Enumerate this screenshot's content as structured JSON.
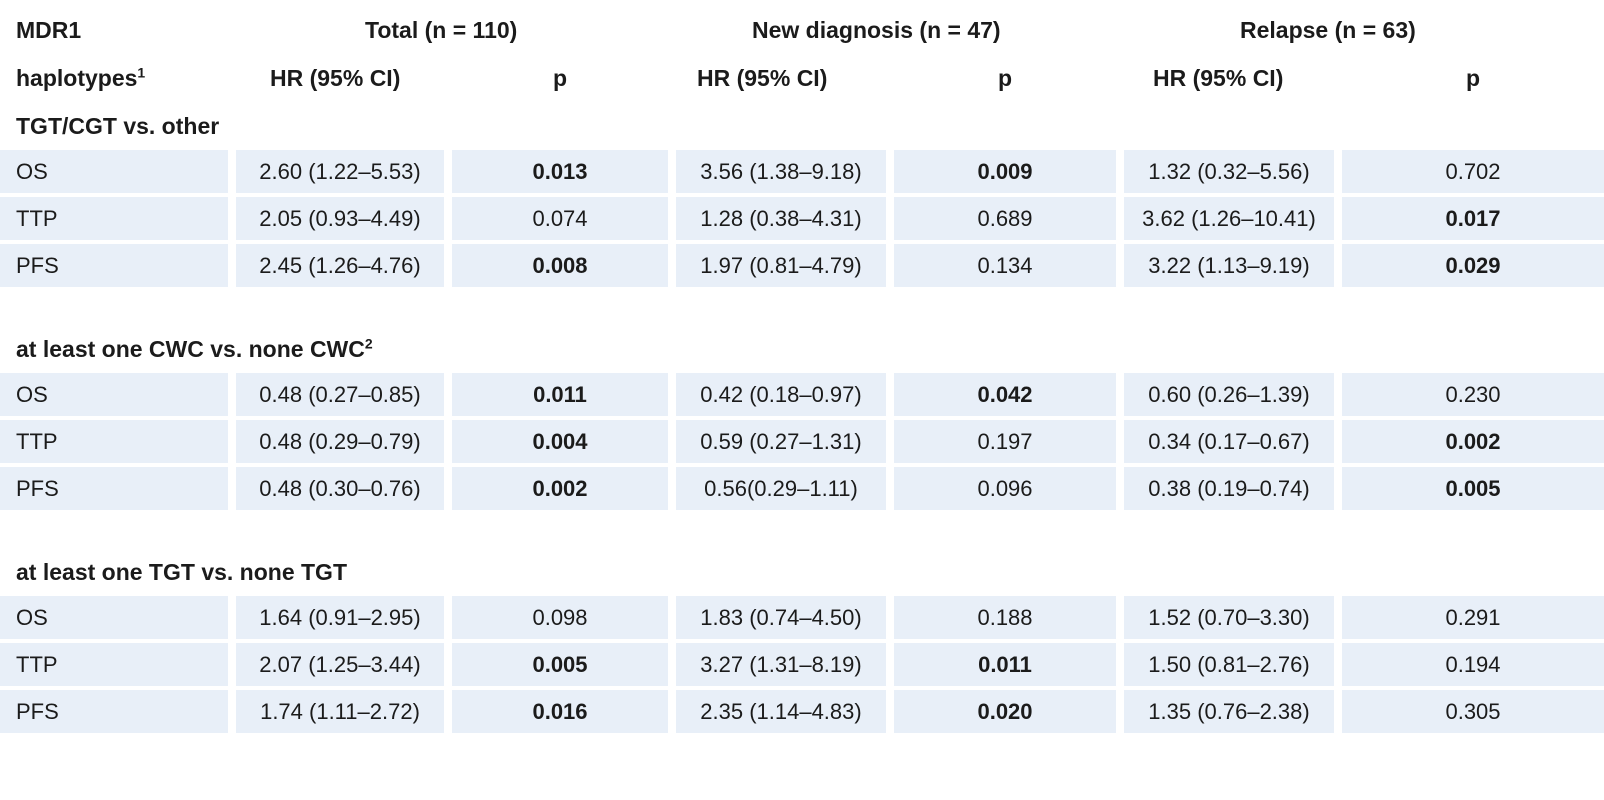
{
  "header": {
    "mdr1": "MDR1",
    "haplotypes": "haplotypes",
    "haplotypes_sup": "1",
    "total": "Total (n = 110)",
    "new_diagnosis": "New diagnosis (n = 47)",
    "relapse": "Relapse (n = 63)",
    "hr_label": "HR (95% CI)",
    "p_label": "p"
  },
  "groups": [
    {
      "title": "TGT/CGT vs. other",
      "title_sup": "",
      "rows": [
        {
          "label": "OS",
          "total_hr": "2.60 (1.22–5.53)",
          "total_p": "0.013",
          "new_hr": "3.56 (1.38–9.18)",
          "new_p": "0.009",
          "relapse_hr": "1.32 (0.32–5.56)",
          "relapse_p": "0.702"
        },
        {
          "label": "TTP",
          "total_hr": "2.05 (0.93–4.49)",
          "total_p": "0.074",
          "new_hr": "1.28 (0.38–4.31)",
          "new_p": "0.689",
          "relapse_hr": "3.62 (1.26–10.41)",
          "relapse_p": "0.017"
        },
        {
          "label": "PFS",
          "total_hr": "2.45 (1.26–4.76)",
          "total_p": "0.008",
          "new_hr": "1.97 (0.81–4.79)",
          "new_p": "0.134",
          "relapse_hr": "3.22 (1.13–9.19)",
          "relapse_p": "0.029"
        }
      ]
    },
    {
      "title": "at least one CWC vs. none CWC",
      "title_sup": "2",
      "rows": [
        {
          "label": "OS",
          "total_hr": "0.48 (0.27–0.85)",
          "total_p": "0.011",
          "new_hr": "0.42 (0.18–0.97)",
          "new_p": "0.042",
          "relapse_hr": "0.60 (0.26–1.39)",
          "relapse_p": "0.230"
        },
        {
          "label": "TTP",
          "total_hr": "0.48 (0.29–0.79)",
          "total_p": "0.004",
          "new_hr": "0.59 (0.27–1.31)",
          "new_p": "0.197",
          "relapse_hr": "0.34 (0.17–0.67)",
          "relapse_p": "0.002"
        },
        {
          "label": "PFS",
          "total_hr": "0.48 (0.30–0.76)",
          "total_p": "0.002",
          "new_hr": "0.56(0.29–1.11)",
          "new_p": "0.096",
          "relapse_hr": "0.38 (0.19–0.74)",
          "relapse_p": "0.005"
        }
      ]
    },
    {
      "title": "at least one TGT vs. none TGT",
      "title_sup": "",
      "rows": [
        {
          "label": "OS",
          "total_hr": "1.64 (0.91–2.95)",
          "total_p": "0.098",
          "new_hr": "1.83 (0.74–4.50)",
          "new_p": "0.188",
          "relapse_hr": "1.52 (0.70–3.30)",
          "relapse_p": "0.291"
        },
        {
          "label": "TTP",
          "total_hr": "2.07 (1.25–3.44)",
          "total_p": "0.005",
          "new_hr": "3.27 (1.31–8.19)",
          "new_p": "0.011",
          "relapse_hr": "1.50 (0.81–2.76)",
          "relapse_p": "0.194"
        },
        {
          "label": "PFS",
          "total_hr": "1.74 (1.11–2.72)",
          "total_p": "0.016",
          "new_hr": "2.35 (1.14–4.83)",
          "new_p": "0.020",
          "relapse_hr": "1.35 (0.76–2.38)",
          "relapse_p": "0.305"
        }
      ]
    }
  ],
  "significant_p_values": [
    "0.013",
    "0.009",
    "0.017",
    "0.008",
    "0.029",
    "0.011",
    "0.042",
    "0.004",
    "0.002",
    "0.005",
    "0.016",
    "0.020"
  ]
}
